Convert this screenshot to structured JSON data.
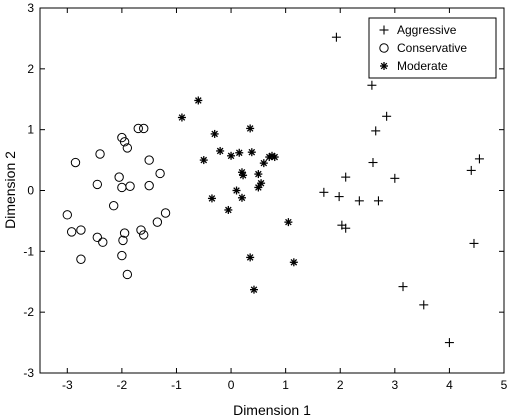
{
  "chart_data": {
    "type": "scatter",
    "xlabel": "Dimension 1",
    "ylabel": "Dimension 2",
    "xlim": [
      -3.5,
      5
    ],
    "ylim": [
      -3,
      3
    ],
    "xticks": [
      "-3",
      "-2",
      "-1",
      "0",
      "1",
      "2",
      "3",
      "4",
      "5"
    ],
    "yticks": [
      "-3",
      "-2",
      "-1",
      "0",
      "1",
      "2",
      "3"
    ],
    "legend_position": "top-right",
    "grid": false,
    "series": [
      {
        "name": "Aggressive",
        "marker": "plus",
        "points": [
          [
            1.93,
            2.52
          ],
          [
            2.58,
            1.73
          ],
          [
            2.65,
            0.98
          ],
          [
            2.85,
            1.22
          ],
          [
            2.6,
            0.46
          ],
          [
            3.0,
            0.2
          ],
          [
            2.1,
            0.22
          ],
          [
            1.7,
            -0.03
          ],
          [
            1.98,
            -0.1
          ],
          [
            2.35,
            -0.17
          ],
          [
            2.7,
            -0.17
          ],
          [
            2.03,
            -0.57
          ],
          [
            2.1,
            -0.62
          ],
          [
            4.55,
            0.52
          ],
          [
            4.4,
            0.33
          ],
          [
            4.45,
            -0.87
          ],
          [
            3.15,
            -1.58
          ],
          [
            3.53,
            -1.88
          ],
          [
            4.0,
            -2.5
          ]
        ]
      },
      {
        "name": "Conservative",
        "marker": "circle",
        "points": [
          [
            -2.0,
            0.87
          ],
          [
            -1.95,
            0.8
          ],
          [
            -1.7,
            1.02
          ],
          [
            -1.6,
            1.02
          ],
          [
            -1.9,
            0.7
          ],
          [
            -2.4,
            0.6
          ],
          [
            -1.5,
            0.5
          ],
          [
            -2.85,
            0.46
          ],
          [
            -2.05,
            0.22
          ],
          [
            -2.0,
            0.05
          ],
          [
            -1.85,
            0.07
          ],
          [
            -1.3,
            0.28
          ],
          [
            -2.45,
            0.1
          ],
          [
            -2.15,
            -0.25
          ],
          [
            -1.5,
            0.08
          ],
          [
            -1.2,
            -0.37
          ],
          [
            -3.0,
            -0.4
          ],
          [
            -2.92,
            -0.68
          ],
          [
            -2.75,
            -0.65
          ],
          [
            -2.45,
            -0.77
          ],
          [
            -2.35,
            -0.85
          ],
          [
            -1.95,
            -0.7
          ],
          [
            -1.98,
            -0.82
          ],
          [
            -1.65,
            -0.65
          ],
          [
            -1.35,
            -0.52
          ],
          [
            -1.6,
            -0.73
          ],
          [
            -2.75,
            -1.13
          ],
          [
            -2.0,
            -1.07
          ],
          [
            -1.9,
            -1.38
          ]
        ]
      },
      {
        "name": "Moderate",
        "marker": "asterisk",
        "points": [
          [
            -0.6,
            1.48
          ],
          [
            -0.9,
            1.2
          ],
          [
            -0.3,
            0.93
          ],
          [
            0.35,
            1.02
          ],
          [
            -0.2,
            0.65
          ],
          [
            0.0,
            0.57
          ],
          [
            0.15,
            0.62
          ],
          [
            0.38,
            0.63
          ],
          [
            -0.5,
            0.5
          ],
          [
            0.7,
            0.55
          ],
          [
            0.75,
            0.57
          ],
          [
            0.8,
            0.55
          ],
          [
            0.6,
            0.45
          ],
          [
            0.5,
            0.27
          ],
          [
            0.55,
            0.12
          ],
          [
            0.2,
            0.3
          ],
          [
            0.22,
            0.25
          ],
          [
            0.5,
            0.05
          ],
          [
            0.1,
            0.0
          ],
          [
            -0.35,
            -0.13
          ],
          [
            -0.05,
            -0.32
          ],
          [
            0.2,
            -0.12
          ],
          [
            1.05,
            -0.52
          ],
          [
            0.35,
            -1.1
          ],
          [
            1.15,
            -1.18
          ],
          [
            0.42,
            -1.63
          ]
        ]
      }
    ]
  }
}
